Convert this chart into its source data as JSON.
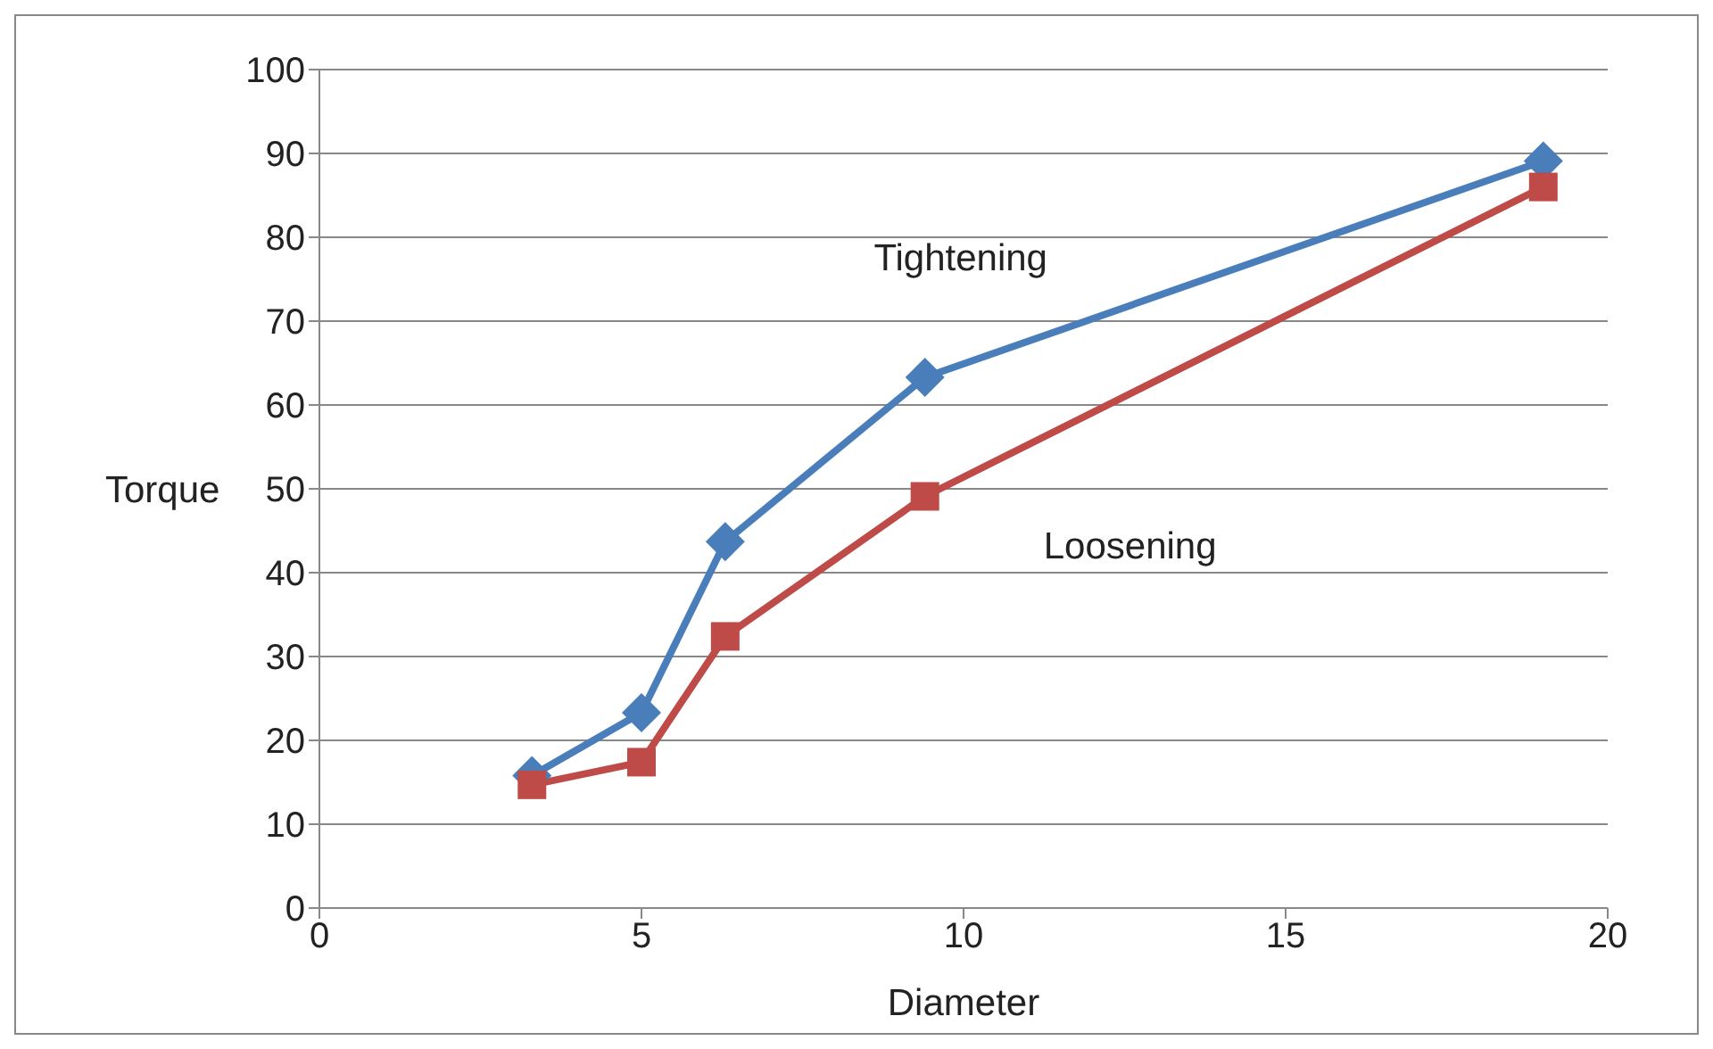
{
  "chart_data": {
    "type": "line",
    "xlabel": "Diameter",
    "ylabel": "Torque",
    "x": [
      3.3,
      5,
      6.3,
      9.4,
      19
    ],
    "series": [
      {
        "name": "Tightening",
        "color": "#4a7ebb",
        "marker": "diamond",
        "values": [
          15.8,
          23.3,
          43.7,
          63.3,
          89.1
        ]
      },
      {
        "name": "Loosening",
        "color": "#be4b48",
        "marker": "square",
        "values": [
          14.7,
          17.4,
          32.4,
          49.1,
          86
        ]
      }
    ],
    "xlim": [
      0,
      20
    ],
    "xticks": [
      0,
      5,
      10,
      15,
      20
    ],
    "ylim": [
      0,
      100
    ],
    "yticks": [
      0,
      10,
      20,
      30,
      40,
      50,
      60,
      70,
      80,
      90,
      100
    ],
    "grid": "y",
    "legend": false,
    "line_style": "solid"
  }
}
